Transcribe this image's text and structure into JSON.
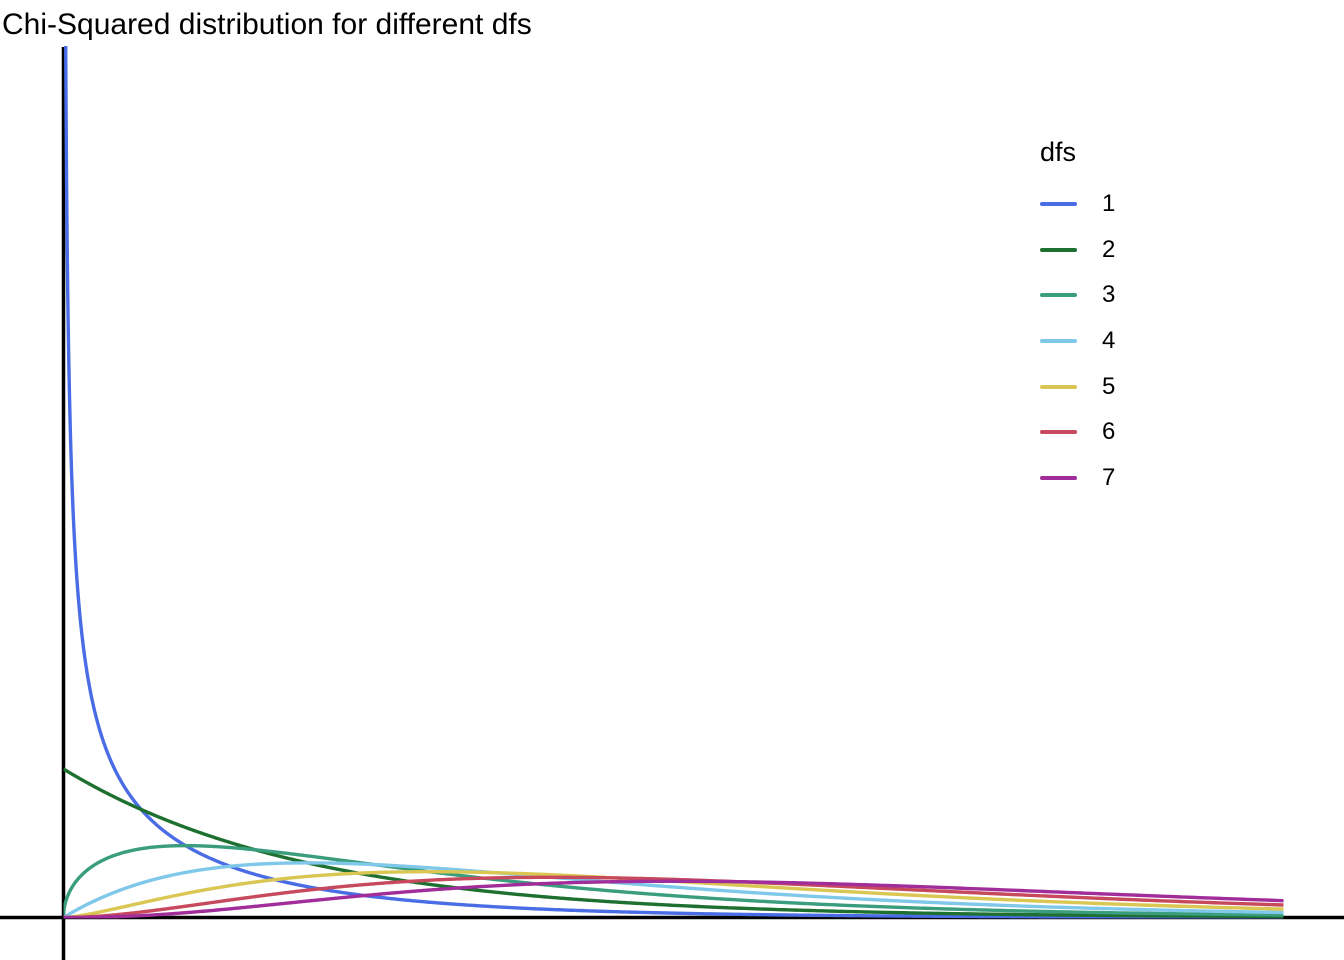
{
  "title": "Chi-Squared distribution for different dfs",
  "chart_data": {
    "type": "line",
    "title": "Chi-Squared distribution for different dfs",
    "subtitle": "",
    "xlabel": "",
    "ylabel": "",
    "x_range": [
      0,
      10
    ],
    "y_range": [
      0,
      2.93
    ],
    "grid": false,
    "axis_ticks": false,
    "axis_color": "#000000",
    "background_color": "#ffffff",
    "function": "chi-squared probability density function f(x; df)",
    "legend": {
      "title": "dfs",
      "position": "right-top",
      "entries": [
        "1",
        "2",
        "3",
        "4",
        "5",
        "6",
        "7"
      ]
    },
    "anchor_x": [
      0,
      0.25,
      0.5,
      1,
      1.5,
      2,
      3,
      4,
      5,
      6,
      7,
      8,
      9,
      10
    ],
    "series": [
      {
        "label": "1",
        "df": 1,
        "color": "#4a6ce4",
        "values": [
          null,
          0.7041,
          0.4394,
          0.242,
          0.1539,
          0.1038,
          0.0514,
          0.027,
          0.0146,
          0.0081,
          0.0046,
          0.0026,
          0.0015,
          0.0009
        ]
      },
      {
        "label": "2",
        "df": 2,
        "color": "#1e7030",
        "values": [
          0.5,
          0.4412,
          0.3894,
          0.3033,
          0.2362,
          0.1839,
          0.1116,
          0.0677,
          0.041,
          0.0249,
          0.0151,
          0.0092,
          0.0055,
          0.0034
        ]
      },
      {
        "label": "3",
        "df": 3,
        "color": "#3a9d7d",
        "values": [
          0,
          0.176,
          0.2197,
          0.242,
          0.2308,
          0.2076,
          0.1542,
          0.108,
          0.0732,
          0.0487,
          0.0319,
          0.0207,
          0.0133,
          0.0085
        ]
      },
      {
        "label": "4",
        "df": 4,
        "color": "#7fc8ea",
        "values": [
          0,
          0.0552,
          0.0974,
          0.1516,
          0.1771,
          0.1839,
          0.1674,
          0.1353,
          0.1026,
          0.0747,
          0.0528,
          0.0366,
          0.025,
          0.0168
        ]
      },
      {
        "label": "5",
        "df": 5,
        "color": "#d9c653",
        "values": [
          0,
          0.0147,
          0.0366,
          0.0807,
          0.1154,
          0.1384,
          0.1542,
          0.144,
          0.122,
          0.0973,
          0.0744,
          0.0551,
          0.0399,
          0.0283
        ]
      },
      {
        "label": "6",
        "df": 6,
        "color": "#c7495d",
        "values": [
          0,
          0.0034,
          0.0122,
          0.0379,
          0.0664,
          0.092,
          0.1255,
          0.1353,
          0.1283,
          0.112,
          0.0925,
          0.0733,
          0.0562,
          0.0421
        ]
      },
      {
        "label": "7",
        "df": 7,
        "color": "#a02d99",
        "values": [
          0,
          0.0007,
          0.0037,
          0.0161,
          0.0346,
          0.0553,
          0.0925,
          0.1152,
          0.122,
          0.1168,
          0.1041,
          0.0882,
          0.0718,
          0.0567
        ]
      }
    ]
  }
}
